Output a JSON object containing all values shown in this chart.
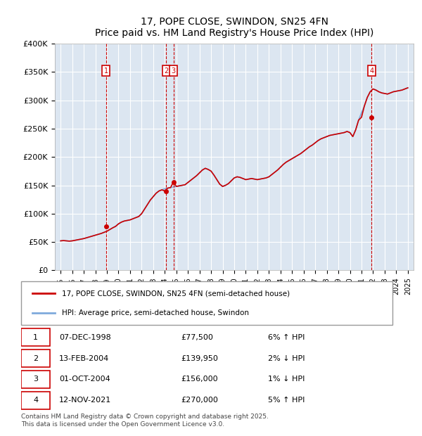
{
  "title": "17, POPE CLOSE, SWINDON, SN25 4FN",
  "subtitle": "Price paid vs. HM Land Registry's House Price Index (HPI)",
  "ylabel": "",
  "xlabel": "",
  "ylim": [
    0,
    400000
  ],
  "yticks": [
    0,
    50000,
    100000,
    150000,
    200000,
    250000,
    300000,
    350000,
    400000
  ],
  "ytick_labels": [
    "£0",
    "£50K",
    "£100K",
    "£150K",
    "£200K",
    "£250K",
    "£300K",
    "£350K",
    "£400K"
  ],
  "background_color": "#dce6f1",
  "plot_bg_color": "#dce6f1",
  "line1_color": "#cc0000",
  "line2_color": "#7faadc",
  "transactions": [
    {
      "id": 1,
      "date": "07-DEC-1998",
      "year": 1998.93,
      "price": 77500,
      "pct": "6%",
      "dir": "↑"
    },
    {
      "id": 2,
      "date": "13-FEB-2004",
      "year": 2004.12,
      "price": 139950,
      "pct": "2%",
      "dir": "↓"
    },
    {
      "id": 3,
      "date": "01-OCT-2004",
      "year": 2004.75,
      "price": 156000,
      "pct": "1%",
      "dir": "↓"
    },
    {
      "id": 4,
      "date": "12-NOV-2021",
      "year": 2021.87,
      "price": 270000,
      "pct": "5%",
      "dir": "↑"
    }
  ],
  "legend_label1": "17, POPE CLOSE, SWINDON, SN25 4FN (semi-detached house)",
  "legend_label2": "HPI: Average price, semi-detached house, Swindon",
  "footer": "Contains HM Land Registry data © Crown copyright and database right 2025.\nThis data is licensed under the Open Government Licence v3.0.",
  "hpi_data": {
    "years": [
      1995.0,
      1995.25,
      1995.5,
      1995.75,
      1996.0,
      1996.25,
      1996.5,
      1996.75,
      1997.0,
      1997.25,
      1997.5,
      1997.75,
      1998.0,
      1998.25,
      1998.5,
      1998.75,
      1999.0,
      1999.25,
      1999.5,
      1999.75,
      2000.0,
      2000.25,
      2000.5,
      2000.75,
      2001.0,
      2001.25,
      2001.5,
      2001.75,
      2002.0,
      2002.25,
      2002.5,
      2002.75,
      2003.0,
      2003.25,
      2003.5,
      2003.75,
      2004.0,
      2004.25,
      2004.5,
      2004.75,
      2005.0,
      2005.25,
      2005.5,
      2005.75,
      2006.0,
      2006.25,
      2006.5,
      2006.75,
      2007.0,
      2007.25,
      2007.5,
      2007.75,
      2008.0,
      2008.25,
      2008.5,
      2008.75,
      2009.0,
      2009.25,
      2009.5,
      2009.75,
      2010.0,
      2010.25,
      2010.5,
      2010.75,
      2011.0,
      2011.25,
      2011.5,
      2011.75,
      2012.0,
      2012.25,
      2012.5,
      2012.75,
      2013.0,
      2013.25,
      2013.5,
      2013.75,
      2014.0,
      2014.25,
      2014.5,
      2014.75,
      2015.0,
      2015.25,
      2015.5,
      2015.75,
      2016.0,
      2016.25,
      2016.5,
      2016.75,
      2017.0,
      2017.25,
      2017.5,
      2017.75,
      2018.0,
      2018.25,
      2018.5,
      2018.75,
      2019.0,
      2019.25,
      2019.5,
      2019.75,
      2020.0,
      2020.25,
      2020.5,
      2020.75,
      2021.0,
      2021.25,
      2021.5,
      2021.75,
      2022.0,
      2022.25,
      2022.5,
      2022.75,
      2023.0,
      2023.25,
      2023.5,
      2023.75,
      2024.0,
      2024.25,
      2024.5,
      2024.75,
      2025.0
    ],
    "hpi_values": [
      52000,
      52500,
      52000,
      51500,
      52000,
      53000,
      54000,
      55000,
      56000,
      57500,
      59000,
      60500,
      62000,
      63500,
      65000,
      67000,
      69000,
      72000,
      75000,
      78000,
      82000,
      85000,
      87000,
      88000,
      89000,
      91000,
      93000,
      95000,
      100000,
      108000,
      116000,
      124000,
      130000,
      136000,
      140000,
      142000,
      144000,
      145000,
      146000,
      147000,
      148000,
      149000,
      150000,
      151000,
      155000,
      159000,
      163000,
      167000,
      172000,
      177000,
      180000,
      178000,
      175000,
      168000,
      160000,
      152000,
      148000,
      150000,
      153000,
      158000,
      163000,
      165000,
      164000,
      162000,
      160000,
      161000,
      162000,
      161000,
      160000,
      161000,
      162000,
      163000,
      165000,
      169000,
      173000,
      177000,
      182000,
      187000,
      191000,
      194000,
      197000,
      200000,
      203000,
      206000,
      210000,
      214000,
      218000,
      221000,
      225000,
      229000,
      232000,
      234000,
      236000,
      238000,
      239000,
      240000,
      241000,
      242000,
      243000,
      245000,
      243000,
      236000,
      248000,
      265000,
      278000,
      290000,
      305000,
      315000,
      320000,
      318000,
      315000,
      313000,
      312000,
      311000,
      313000,
      315000,
      316000,
      317000,
      318000,
      320000,
      322000
    ],
    "property_values": [
      52000,
      52500,
      52000,
      51500,
      52000,
      53000,
      54000,
      55000,
      56000,
      57500,
      59000,
      60500,
      62000,
      63500,
      65000,
      67000,
      69000,
      72000,
      75000,
      77500,
      82000,
      85000,
      87000,
      88000,
      89000,
      91000,
      93000,
      95000,
      100000,
      108000,
      116000,
      124000,
      130000,
      136000,
      140000,
      142000,
      139950,
      145000,
      146000,
      156000,
      148000,
      149000,
      150000,
      151000,
      155000,
      159000,
      163000,
      167000,
      172000,
      177000,
      180000,
      178000,
      175000,
      168000,
      160000,
      152000,
      148000,
      150000,
      153000,
      158000,
      163000,
      165000,
      164000,
      162000,
      160000,
      161000,
      162000,
      161000,
      160000,
      161000,
      162000,
      163000,
      165000,
      169000,
      173000,
      177000,
      182000,
      187000,
      191000,
      194000,
      197000,
      200000,
      203000,
      206000,
      210000,
      214000,
      218000,
      221000,
      225000,
      229000,
      232000,
      234000,
      236000,
      238000,
      239000,
      240000,
      241000,
      242000,
      243000,
      245000,
      243000,
      236000,
      248000,
      265000,
      270000,
      290000,
      305000,
      315000,
      320000,
      318000,
      315000,
      313000,
      312000,
      311000,
      313000,
      315000,
      316000,
      317000,
      318000,
      320000,
      322000
    ]
  }
}
